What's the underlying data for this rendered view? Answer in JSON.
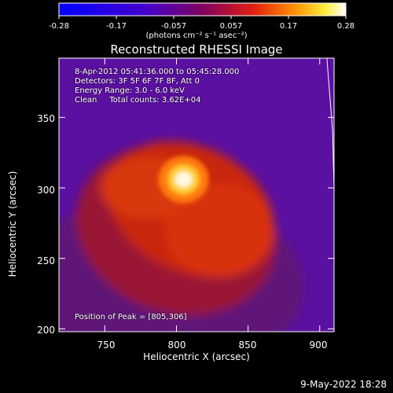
{
  "chart_data": {
    "type": "heatmap",
    "title": "Reconstructed RHESSI Image",
    "xlabel": "Heliocentric X (arcsec)",
    "ylabel": "Heliocentric Y (arcsec)",
    "xlim": [
      718,
      910
    ],
    "ylim": [
      198,
      392
    ],
    "x_ticks": [
      750,
      800,
      850,
      900
    ],
    "y_ticks": [
      200,
      250,
      300,
      350
    ],
    "colorbar": {
      "ticks": [
        "-0.28",
        "-0.17",
        "-0.057",
        "0.057",
        "0.17",
        "0.28"
      ],
      "units": "(photons cm⁻² s⁻¹ asec⁻²)",
      "range": [
        -0.28,
        0.28
      ]
    },
    "annotations": [
      "8-Apr-2012 05:41:36.000 to 05:45:28.000",
      "Detectors: 3F 5F 6F 7F 8F, Att 0",
      "Energy Range: 3.0 - 6.0 keV",
      "Clean     Total counts: 3.62E+04"
    ],
    "peak_label": "Position of Peak = [805,306]",
    "peak_position": [
      805,
      306
    ],
    "limb_line": [
      [
        905,
        392
      ],
      [
        909,
        340
      ],
      [
        910,
        300
      ]
    ],
    "colors": {
      "low": "#1a00ff",
      "mid": "#a01070",
      "high": "#ffffff"
    }
  },
  "footer": {
    "timestamp": "9-May-2022 18:28"
  }
}
